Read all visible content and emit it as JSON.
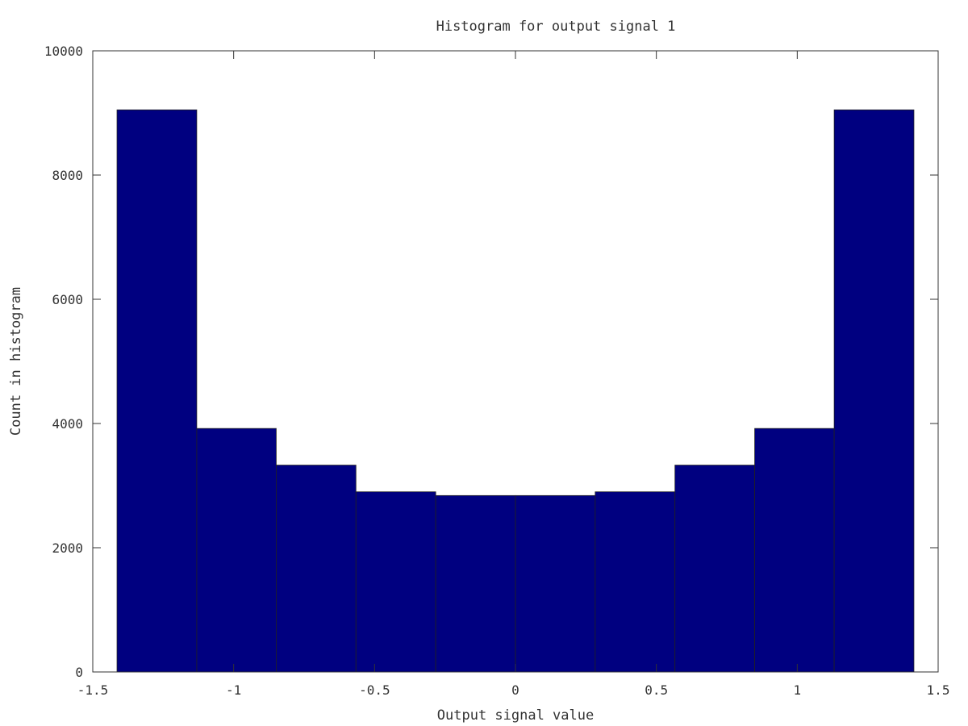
{
  "chart_data": {
    "type": "bar",
    "title": "Histogram for output signal 1",
    "xlabel": "Output signal value",
    "ylabel": "Count in histogram",
    "xlim": [
      -1.5,
      1.5
    ],
    "ylim": [
      0,
      10000
    ],
    "xticks": [
      -1.5,
      -1,
      -0.5,
      0,
      0.5,
      1,
      1.5
    ],
    "xtick_labels": [
      "-1.5",
      "-1",
      "-0.5",
      "0",
      "0.5",
      "1",
      "1.5"
    ],
    "yticks": [
      0,
      2000,
      4000,
      6000,
      8000,
      10000
    ],
    "ytick_labels": [
      "0",
      "2000",
      "4000",
      "6000",
      "8000",
      "10000"
    ],
    "bins": [
      {
        "x0": -1.414,
        "x1": -1.131,
        "value": 9050
      },
      {
        "x0": -1.131,
        "x1": -0.849,
        "value": 3920
      },
      {
        "x0": -0.849,
        "x1": -0.566,
        "value": 3330
      },
      {
        "x0": -0.566,
        "x1": -0.283,
        "value": 2900
      },
      {
        "x0": -0.283,
        "x1": 0.0,
        "value": 2840
      },
      {
        "x0": 0.0,
        "x1": 0.283,
        "value": 2840
      },
      {
        "x0": 0.283,
        "x1": 0.566,
        "value": 2900
      },
      {
        "x0": 0.566,
        "x1": 0.849,
        "value": 3330
      },
      {
        "x0": 0.849,
        "x1": 1.131,
        "value": 3920
      },
      {
        "x0": 1.131,
        "x1": 1.414,
        "value": 9050
      }
    ],
    "bar_color": "#000080",
    "grid": false,
    "legend": "none"
  }
}
